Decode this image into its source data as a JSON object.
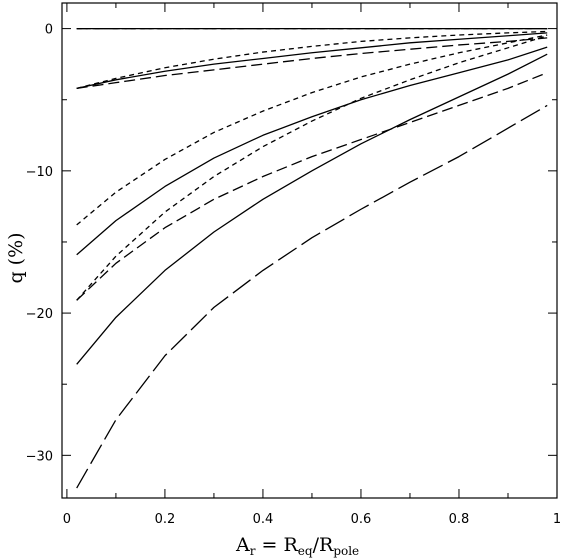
{
  "chart_data": {
    "type": "line",
    "title": "",
    "xlabel": {
      "main": "A",
      "main_sub": "r",
      "eq": " = R",
      "eq_sub": "eq",
      "slash": "/R",
      "pole_sub": "pole"
    },
    "ylabel": "q (%)",
    "xlim": [
      -0.01,
      1.0
    ],
    "ylim": [
      -33,
      1.8
    ],
    "x_ticks": [
      0,
      0.2,
      0.4,
      0.6,
      0.8,
      1
    ],
    "x_tick_labels": [
      "0",
      "0.2",
      "0.4",
      "0.6",
      "0.8",
      "1"
    ],
    "y_ticks": [
      0,
      -10,
      -20,
      -30
    ],
    "y_tick_labels": [
      "0",
      "−10",
      "−20",
      "−30"
    ],
    "grid": false,
    "legend": "none",
    "series": [
      {
        "style": "solid",
        "x": [
          0.02,
          0.2,
          0.4,
          0.6,
          0.8,
          0.98
        ],
        "y": [
          0,
          0,
          0,
          0,
          0,
          0
        ]
      },
      {
        "style": "dashed",
        "x": [
          0.02,
          0.98
        ],
        "y": [
          0,
          0
        ]
      },
      {
        "style": "dotted",
        "x": [
          0.02,
          0.98
        ],
        "y": [
          0,
          0
        ]
      },
      {
        "style": "solid",
        "x": [
          0.02,
          0.1,
          0.2,
          0.3,
          0.4,
          0.5,
          0.6,
          0.7,
          0.8,
          0.9,
          0.98
        ],
        "y": [
          -4.2,
          -3.6,
          -3.0,
          -2.5,
          -2.1,
          -1.7,
          -1.35,
          -1.0,
          -0.75,
          -0.5,
          -0.3
        ]
      },
      {
        "style": "dashed",
        "x": [
          0.02,
          0.1,
          0.2,
          0.3,
          0.4,
          0.5,
          0.6,
          0.7,
          0.8,
          0.9,
          0.98
        ],
        "y": [
          -4.2,
          -3.8,
          -3.3,
          -2.9,
          -2.5,
          -2.1,
          -1.75,
          -1.45,
          -1.15,
          -0.9,
          -0.65
        ]
      },
      {
        "style": "dotted",
        "x": [
          0.02,
          0.1,
          0.2,
          0.3,
          0.4,
          0.5,
          0.6,
          0.7,
          0.8,
          0.9,
          0.98
        ],
        "y": [
          -4.2,
          -3.5,
          -2.75,
          -2.15,
          -1.65,
          -1.25,
          -0.9,
          -0.65,
          -0.45,
          -0.3,
          -0.2
        ]
      },
      {
        "style": "solid",
        "x": [
          0.02,
          0.1,
          0.2,
          0.3,
          0.4,
          0.5,
          0.6,
          0.7,
          0.8,
          0.9,
          0.98
        ],
        "y": [
          -15.9,
          -13.5,
          -11.1,
          -9.1,
          -7.5,
          -6.2,
          -5.0,
          -4.0,
          -3.1,
          -2.2,
          -1.3
        ]
      },
      {
        "style": "dotted",
        "x": [
          0.02,
          0.1,
          0.2,
          0.3,
          0.4,
          0.5,
          0.6,
          0.7,
          0.8,
          0.9,
          0.98
        ],
        "y": [
          -13.8,
          -11.5,
          -9.2,
          -7.3,
          -5.8,
          -4.5,
          -3.4,
          -2.5,
          -1.7,
          -1.0,
          -0.45
        ]
      },
      {
        "style": "dashed",
        "x": [
          0.02,
          0.1,
          0.2,
          0.3,
          0.4,
          0.5,
          0.6,
          0.7,
          0.8,
          0.9,
          0.98
        ],
        "y": [
          -19.1,
          -16.5,
          -14.0,
          -12.0,
          -10.4,
          -9.0,
          -7.8,
          -6.6,
          -5.4,
          -4.2,
          -3.1
        ]
      },
      {
        "style": "dotted",
        "x": [
          0.02,
          0.1,
          0.2,
          0.3,
          0.4,
          0.5,
          0.6,
          0.7,
          0.8,
          0.9,
          0.98
        ],
        "y": [
          -19.1,
          -16.0,
          -12.9,
          -10.4,
          -8.3,
          -6.5,
          -4.9,
          -3.6,
          -2.4,
          -1.35,
          -0.5
        ]
      },
      {
        "style": "solid",
        "x": [
          0.02,
          0.1,
          0.2,
          0.3,
          0.4,
          0.5,
          0.6,
          0.7,
          0.8,
          0.9,
          0.98
        ],
        "y": [
          -23.6,
          -20.3,
          -17.0,
          -14.3,
          -12.0,
          -10.0,
          -8.1,
          -6.4,
          -4.8,
          -3.2,
          -1.8
        ]
      },
      {
        "style": "longdash",
        "x": [
          0.02,
          0.1,
          0.2,
          0.3,
          0.4,
          0.5,
          0.6,
          0.7,
          0.8,
          0.9,
          0.98
        ],
        "y": [
          -32.3,
          -27.5,
          -23.0,
          -19.6,
          -17.0,
          -14.7,
          -12.7,
          -10.8,
          -9.0,
          -7.0,
          -5.4
        ]
      }
    ],
    "colors": {
      "line": "#000000",
      "background": "#ffffff"
    }
  }
}
